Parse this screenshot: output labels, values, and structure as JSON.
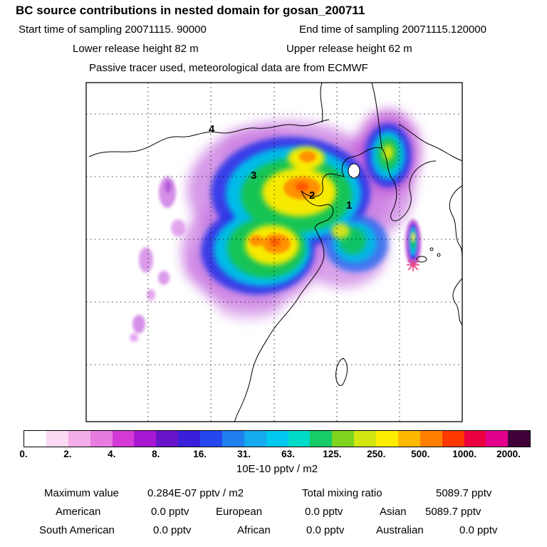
{
  "header": {
    "title": "BC  source contributions in nested domain for gosan_200711",
    "start_time": "Start time of sampling 20071115. 90000",
    "end_time": "End time of sampling 20071115.120000",
    "lower_release": "Lower release height   82 m",
    "upper_release": "Upper release height   62 m",
    "tracer_note": "Passive tracer used, meteorological data are from ECMWF"
  },
  "map": {
    "point_labels": [
      "1",
      "2",
      "3",
      "4"
    ],
    "marker_name": "receptor-star"
  },
  "colorbar": {
    "unit_label": "10E-10 pptv / m2",
    "tick_labels": [
      "0.",
      "2.",
      "4.",
      "8.",
      "16.",
      "31.",
      "63.",
      "125.",
      "250.",
      "500.",
      "1000.",
      "2000."
    ],
    "colors": [
      "#ffffff",
      "#fbdaf3",
      "#f3aee9",
      "#e77be0",
      "#d63ad6",
      "#a818d2",
      "#6a14ca",
      "#3a20da",
      "#2448ee",
      "#2080f0",
      "#16aaee",
      "#00c8ee",
      "#00dcc8",
      "#16cc66",
      "#7ed41e",
      "#d2e610",
      "#ffee00",
      "#ffb800",
      "#ff8000",
      "#ff3800",
      "#ea0040",
      "#e2008c",
      "#42003a"
    ]
  },
  "stats": {
    "max_label": "Maximum value",
    "max_value": "0.284E-07 pptv / m2",
    "total_label": "Total mixing ratio",
    "total_value": "5089.7 pptv",
    "regions": [
      {
        "label": "American",
        "value": "0.0 pptv"
      },
      {
        "label": "European",
        "value": "0.0 pptv"
      },
      {
        "label": "Asian",
        "value": "5089.7 pptv"
      },
      {
        "label": "South American",
        "value": "0.0 pptv"
      },
      {
        "label": "African",
        "value": "0.0 pptv"
      },
      {
        "label": "Australian",
        "value": "0.0 pptv"
      }
    ]
  },
  "chart_data": {
    "type": "heatmap",
    "title": "BC source contributions in nested domain for gosan_200711",
    "subtitle": "Passive tracer used, meteorological data are from ECMWF",
    "sampling_start": "20071115. 90000",
    "sampling_end": "20071115.120000",
    "lower_release_height_m": 82,
    "upper_release_height_m": 62,
    "colorbar_scale": [
      0,
      2,
      4,
      8,
      16,
      31,
      63,
      125,
      250,
      500,
      1000,
      2000
    ],
    "colorbar_unit": "10E-10 pptv / m2",
    "maximum_value": "0.284E-07 pptv / m2",
    "total_mixing_ratio_pptv": 5089.7,
    "contributions_pptv": {
      "American": 0.0,
      "European": 0.0,
      "Asian": 5089.7,
      "South American": 0.0,
      "African": 0.0,
      "Australian": 0.0
    },
    "numbered_points": [
      "1",
      "2",
      "3",
      "4"
    ],
    "legend_position": "bottom",
    "grid": true,
    "notes": "Filled-contour source contribution plume over East Asia (NE China, Yellow Sea, Korea); receptor star marker near Gosan/Jeju"
  }
}
